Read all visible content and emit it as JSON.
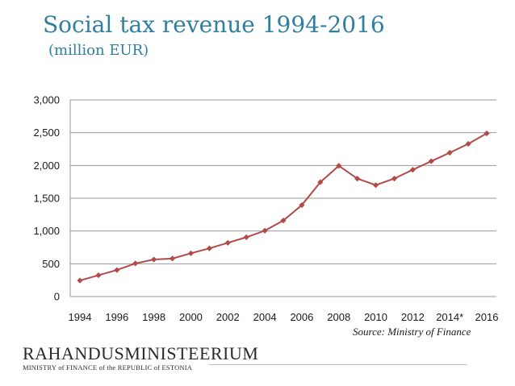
{
  "chart_data": {
    "type": "line",
    "title": "Social tax revenue 1994-2016",
    "subtitle": "(million EUR)",
    "x": [
      1994,
      1995,
      1996,
      1997,
      1998,
      1999,
      2000,
      2001,
      2002,
      2003,
      2004,
      2005,
      2006,
      2007,
      2008,
      2009,
      2010,
      2011,
      2012,
      2013,
      2014,
      2015,
      2016
    ],
    "series": [
      {
        "values": [
          245,
          325,
          405,
          505,
          565,
          580,
          660,
          735,
          820,
          905,
          1005,
          1160,
          1395,
          1745,
          1995,
          1800,
          1700,
          1800,
          1935,
          2065,
          2195,
          2330,
          2490
        ],
        "color": "#b24a48"
      }
    ],
    "x_tick_labels": [
      "1994",
      "1996",
      "1998",
      "2000",
      "2002",
      "2004",
      "2006",
      "2008",
      "2010",
      "2012",
      "2014*",
      "2016"
    ],
    "y_tick_labels": [
      "0",
      "500",
      "1,000",
      "1,500",
      "2,000",
      "2,500",
      "3,000"
    ],
    "y_ticks": [
      0,
      500,
      1000,
      1500,
      2000,
      2500,
      3000
    ],
    "ylim": [
      0,
      3000
    ],
    "xlabel": "",
    "ylabel": "",
    "grid": true,
    "legend": "none",
    "gridline_color": "#9a9a9a",
    "title_color": "#2f7fa2"
  },
  "source": "Source: Ministry of Finance",
  "logo": {
    "name": "RAHANDUSMINISTEERIUM",
    "tagline": "MINISTRY of FINANCE of the REPUBLIC of ESTONIA"
  }
}
